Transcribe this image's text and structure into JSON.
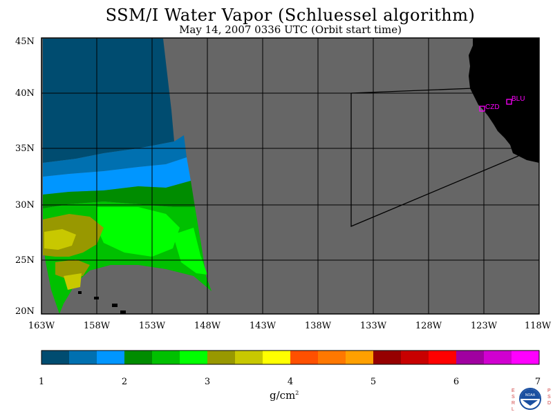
{
  "title": "SSM/I Water Vapor (Schluessel algorithm)",
  "subtitle": "May 14, 2007  0336 UTC  (Orbit start time)",
  "map": {
    "lat_labels": [
      "45N",
      "40N",
      "35N",
      "30N",
      "25N",
      "20N"
    ],
    "lon_labels": [
      "163W",
      "158W",
      "153W",
      "148W",
      "143W",
      "138W",
      "133W",
      "128W",
      "123W",
      "118W"
    ],
    "stations": [
      {
        "name": "CZD"
      },
      {
        "name": "BLU"
      }
    ],
    "colors": {
      "ocean_gray": "#666666",
      "land": "#000000",
      "station": "#ff00ff"
    }
  },
  "colorbar": {
    "ticks": [
      "1",
      "2",
      "3",
      "4",
      "5",
      "6",
      "7"
    ],
    "units_base": "g/cm",
    "units_exp": "2",
    "colors": [
      "#004c70",
      "#0070b0",
      "#0096ff",
      "#008c00",
      "#00c000",
      "#00ff00",
      "#989800",
      "#c8c800",
      "#ffff00",
      "#ff5000",
      "#ff7800",
      "#ffa000",
      "#960000",
      "#c80000",
      "#ff0000",
      "#a000a0",
      "#d000d0",
      "#ff00ff"
    ]
  },
  "logo": {
    "left_text": "ESRL",
    "right_text": "PSD",
    "center_text": "NOAA"
  }
}
